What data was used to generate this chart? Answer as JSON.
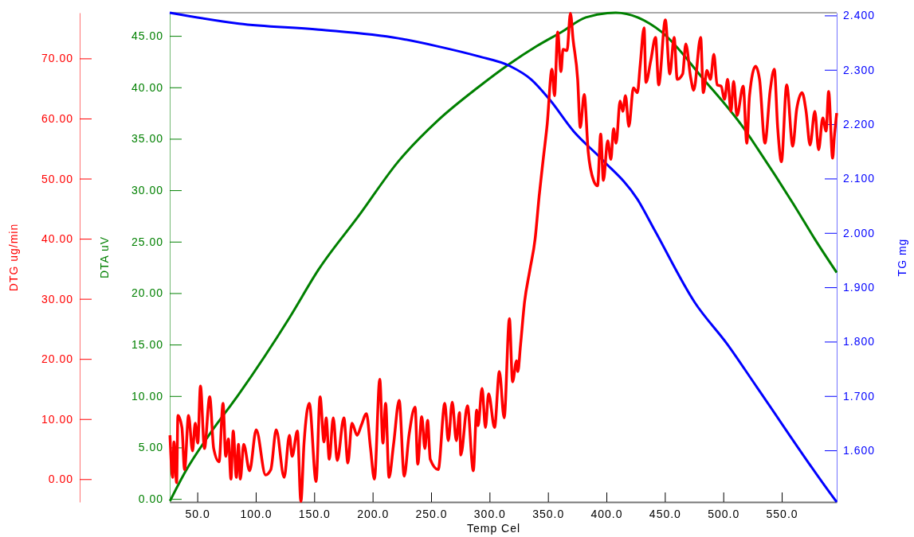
{
  "chart_data": {
    "type": "line",
    "xlabel": "Temp Cel",
    "ylabel": "DTA uV",
    "y2label": "TG mg",
    "y3label": "DTG ug/min",
    "grid": false,
    "line_style": "solid",
    "marker": "none",
    "xlim": [
      26.4,
      597
    ],
    "xticks": [
      {
        "value": 50,
        "label": "50.0"
      },
      {
        "value": 100,
        "label": "100.0"
      },
      {
        "value": 150,
        "label": "150.0"
      },
      {
        "value": 200,
        "label": "200.0"
      },
      {
        "value": 250,
        "label": "250.0"
      },
      {
        "value": 300,
        "label": "300.0"
      },
      {
        "value": 350,
        "label": "350.0"
      },
      {
        "value": 400,
        "label": "400.0"
      },
      {
        "value": 450,
        "label": "450.0"
      },
      {
        "value": 500,
        "label": "500.0"
      },
      {
        "value": 550,
        "label": "550.0"
      }
    ],
    "ylim": [
      -0.3,
      47.25
    ],
    "yticks": [
      {
        "value": 0,
        "label": "0.00"
      },
      {
        "value": 5,
        "label": "5.00"
      },
      {
        "value": 10,
        "label": "10.00"
      },
      {
        "value": 15,
        "label": "15.00"
      },
      {
        "value": 20,
        "label": "20.00"
      },
      {
        "value": 25,
        "label": "25.00"
      },
      {
        "value": 30,
        "label": "30.00"
      },
      {
        "value": 35,
        "label": "35.00"
      },
      {
        "value": 40,
        "label": "40.00"
      },
      {
        "value": 45,
        "label": "45.00"
      }
    ],
    "y2lim": [
      1.505,
      2.405
    ],
    "y2ticks": [
      {
        "value": 1.6,
        "label": "1.600"
      },
      {
        "value": 1.7,
        "label": "1.700"
      },
      {
        "value": 1.8,
        "label": "1.800"
      },
      {
        "value": 1.9,
        "label": "1.900"
      },
      {
        "value": 2.0,
        "label": "2.000"
      },
      {
        "value": 2.1,
        "label": "2.100"
      },
      {
        "value": 2.2,
        "label": "2.200"
      },
      {
        "value": 2.3,
        "label": "2.300"
      },
      {
        "value": 2.4,
        "label": "2.400"
      }
    ],
    "y3lim": [
      -3.8,
      77.6
    ],
    "y3ticks": [
      {
        "value": 0,
        "label": "0.00"
      },
      {
        "value": 10,
        "label": "10.00"
      },
      {
        "value": 20,
        "label": "20.00"
      },
      {
        "value": 30,
        "label": "30.00"
      },
      {
        "value": 40,
        "label": "40.00"
      },
      {
        "value": 50,
        "label": "50.00"
      },
      {
        "value": 60,
        "label": "60.00"
      },
      {
        "value": 70,
        "label": "70.00"
      }
    ],
    "series": [
      {
        "color": "#008000",
        "axis": "y",
        "x": [
          26.6,
          40,
          60.6,
          85.7,
          128.8,
          153.8,
          188,
          222,
          256,
          290.2,
          317.4,
          340.3,
          361.9,
          382.4,
          408,
          447,
          483,
          517,
          529,
          563,
          578,
          597
        ],
        "values": [
          -0.2,
          2.7,
          6.3,
          10.2,
          17.6,
          22.3,
          27.5,
          32.8,
          36.8,
          40.0,
          42.3,
          44.0,
          45.4,
          46.8,
          47.25,
          45.4,
          40.8,
          36.1,
          34.1,
          28.1,
          25.3,
          22.0
        ]
      },
      {
        "color": "#0000ff",
        "axis": "y2",
        "x": [
          26.4,
          85.7,
          153.8,
          222,
          256,
          290.2,
          317.4,
          335.8,
          351.5,
          371.9,
          395.8,
          426.5,
          441.5,
          475.6,
          503.5,
          528.8,
          594.9,
          597
        ],
        "values": [
          2.405,
          2.385,
          2.374,
          2.358,
          2.343,
          2.325,
          2.307,
          2.282,
          2.245,
          2.187,
          2.136,
          2.062,
          2.004,
          1.872,
          1.795,
          1.716,
          1.511,
          1.505
        ]
      },
      {
        "color": "#ff0000",
        "axis": "y3",
        "x": [
          26.6,
          28.9,
          30.0,
          32.3,
          33.4,
          36.8,
          39.1,
          42.5,
          45.9,
          48.2,
          50.4,
          52.7,
          56.1,
          60.6,
          64.0,
          68.6,
          72.0,
          74.3,
          76.6,
          78.8,
          80.7,
          83.4,
          85.2,
          86.8,
          89.7,
          94.7,
          100.4,
          108.4,
          112.9,
          117.5,
          124.3,
          128.8,
          131.1,
          135.6,
          138.6,
          141.3,
          145.8,
          151.6,
          155.0,
          158.4,
          160.2,
          162.9,
          166.3,
          169.7,
          175.4,
          178.8,
          182.3,
          186.7,
          190.2,
          194.7,
          198.1,
          201.5,
          206.1,
          208.8,
          211.1,
          214.0,
          217.9,
          222.7,
          227.0,
          231.1,
          236.3,
          238.6,
          242.0,
          244.7,
          247.0,
          249.3,
          256.1,
          261.7,
          264.7,
          268.1,
          271.6,
          274.3,
          275.4,
          281.1,
          286.1,
          289.0,
          290.2,
          293.6,
          296.5,
          299.2,
          304.3,
          308.4,
          312.5,
          317.0,
          319.7,
          323.1,
          324.2,
          326.5,
          329.9,
          334.4,
          339.0,
          342.4,
          345.9,
          349.3,
          353.4,
          355.6,
          358.3,
          361.1,
          362.9,
          366.3,
          369.2,
          371.5,
          375.4,
          377.6,
          381.0,
          384.4,
          389.0,
          392.4,
          395.1,
          397.4,
          401.1,
          403.8,
          406.1,
          408.3,
          411.7,
          414.0,
          416.3,
          419.2,
          423.1,
          426.5,
          428.8,
          432.2,
          433.8,
          437.9,
          442.0,
          444.7,
          450.4,
          454.2,
          457.9,
          460.6,
          465.2,
          467.9,
          472.0,
          474.7,
          480.6,
          482.9,
          486.0,
          489.0,
          491.9,
          494.7,
          498.1,
          501.0,
          503.7,
          506.5,
          508.8,
          511.7,
          517.0,
          520.1,
          522.4,
          527.6,
          531.0,
          535.6,
          540.1,
          543.6,
          546.5,
          549.7,
          554.2,
          559.4,
          562.8,
          567.4,
          570.8,
          574.2,
          578.3,
          581.5,
          585.1,
          587.9,
          590.1,
          593.5,
          594.9,
          597.0
        ],
        "values": [
          7.3,
          0.3,
          6.2,
          -0.6,
          10.6,
          8.6,
          1.6,
          10.6,
          4.7,
          9.3,
          6.0,
          15.5,
          5.1,
          13.7,
          5.1,
          2.9,
          12.6,
          3.8,
          6.7,
          0.0,
          8.0,
          0.3,
          5.8,
          0.0,
          5.8,
          1.4,
          8.2,
          0.7,
          1.6,
          8.2,
          0.3,
          7.3,
          3.8,
          8.0,
          -3.7,
          6.0,
          12.6,
          -0.4,
          13.7,
          6.2,
          10.2,
          3.3,
          10.2,
          3.1,
          10.2,
          2.7,
          9.3,
          7.3,
          8.9,
          10.9,
          5.3,
          0.0,
          16.6,
          6.0,
          12.6,
          0.3,
          5.8,
          13.1,
          0.5,
          7.3,
          12.0,
          2.5,
          10.4,
          5.1,
          9.8,
          3.3,
          1.6,
          12.6,
          6.4,
          12.8,
          6.4,
          11.1,
          4.0,
          12.2,
          1.4,
          11.5,
          8.9,
          15.1,
          8.6,
          14.2,
          8.6,
          17.9,
          10.2,
          26.7,
          16.2,
          19.7,
          17.9,
          22.3,
          29.4,
          34.7,
          40.0,
          47.0,
          53.2,
          59.0,
          68.2,
          63.8,
          74.4,
          67.8,
          71.5,
          71.3,
          77.5,
          73.1,
          66.5,
          58.5,
          64.0,
          54.5,
          49.7,
          48.8,
          57.4,
          49.7,
          56.3,
          53.2,
          58.3,
          55.9,
          62.9,
          61.2,
          63.8,
          58.7,
          65.1,
          64.3,
          68.7,
          75.1,
          66.0,
          69.6,
          73.5,
          65.6,
          76.4,
          67.4,
          73.5,
          66.5,
          67.4,
          72.4,
          66.9,
          64.7,
          73.5,
          64.3,
          68.0,
          66.5,
          70.7,
          65.6,
          65.4,
          63.2,
          66.5,
          61.2,
          66.2,
          60.5,
          65.4,
          55.9,
          63.8,
          68.7,
          66.5,
          55.9,
          64.7,
          68.2,
          58.5,
          52.8,
          65.6,
          55.4,
          61.6,
          64.3,
          61.2,
          55.6,
          61.2,
          54.8,
          60.1,
          57.9,
          64.5,
          53.4,
          56.8,
          60.9
        ]
      }
    ]
  }
}
